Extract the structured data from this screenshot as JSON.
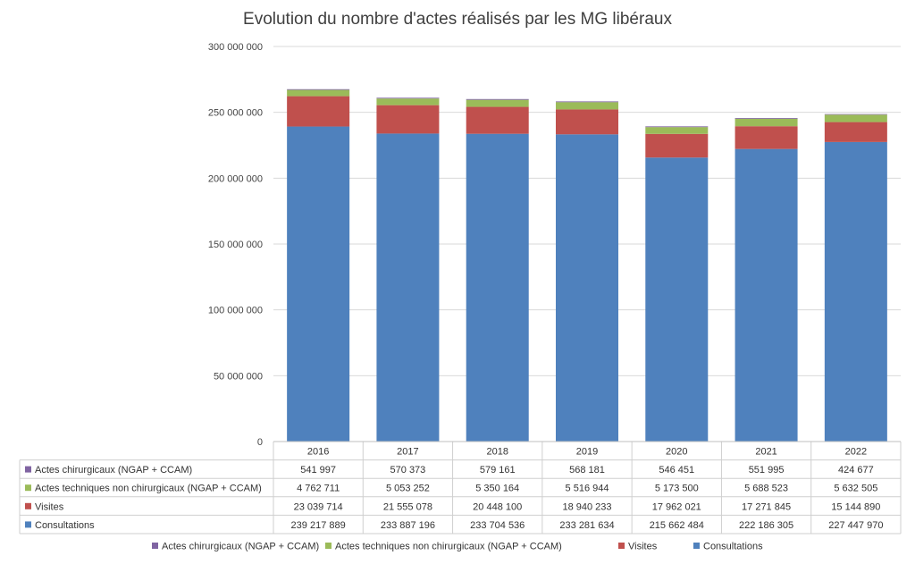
{
  "chart_data": {
    "type": "bar",
    "stacked": true,
    "title": "Evolution du nombre d'actes réalisés par les MG libéraux",
    "xlabel": "",
    "ylabel": "",
    "categories": [
      "2016",
      "2017",
      "2018",
      "2019",
      "2020",
      "2021",
      "2022"
    ],
    "ylim": [
      0,
      300000000
    ],
    "yticks": [
      "0",
      "50 000 000",
      "100 000 000",
      "150 000 000",
      "200 000 000",
      "250 000 000",
      "300 000 000"
    ],
    "ytick_values": [
      0,
      50000000,
      100000000,
      150000000,
      200000000,
      250000000,
      300000000
    ],
    "grid": true,
    "legend_position": "bottom",
    "data_table": true,
    "series": [
      {
        "name": "Actes chirurgicaux (NGAP + CCAM)",
        "color": "#8064a2",
        "values": [
          541997,
          570373,
          579161,
          568181,
          546451,
          551995,
          424677
        ],
        "labels": [
          "541 997",
          "570 373",
          "579 161",
          "568 181",
          "546 451",
          "551 995",
          "424 677"
        ]
      },
      {
        "name": "Actes techniques non chirurgicaux (NGAP + CCAM)",
        "color": "#9bbb59",
        "values": [
          4762711,
          5053252,
          5350164,
          5516944,
          5173500,
          5688523,
          5632505
        ],
        "labels": [
          "4 762 711",
          "5 053 252",
          "5 350 164",
          "5 516 944",
          "5 173 500",
          "5 688 523",
          "5 632 505"
        ]
      },
      {
        "name": "Visites",
        "color": "#c0504d",
        "values": [
          23039714,
          21555078,
          20448100,
          18940233,
          17962021,
          17271845,
          15144890
        ],
        "labels": [
          "23 039 714",
          "21 555 078",
          "20 448 100",
          "18 940 233",
          "17 962 021",
          "17 271 845",
          "15 144 890"
        ]
      },
      {
        "name": "Consultations",
        "color": "#4f81bd",
        "values": [
          239217889,
          233887196,
          233704536,
          233281634,
          215662484,
          222186305,
          227447970
        ],
        "labels": [
          "239 217 889",
          "233 887 196",
          "233 704 536",
          "233 281 634",
          "215 662 484",
          "222 186 305",
          "227 447 970"
        ]
      }
    ],
    "legend_order": [
      0,
      1,
      2,
      3
    ],
    "stack_order": [
      3,
      2,
      1,
      0
    ]
  }
}
